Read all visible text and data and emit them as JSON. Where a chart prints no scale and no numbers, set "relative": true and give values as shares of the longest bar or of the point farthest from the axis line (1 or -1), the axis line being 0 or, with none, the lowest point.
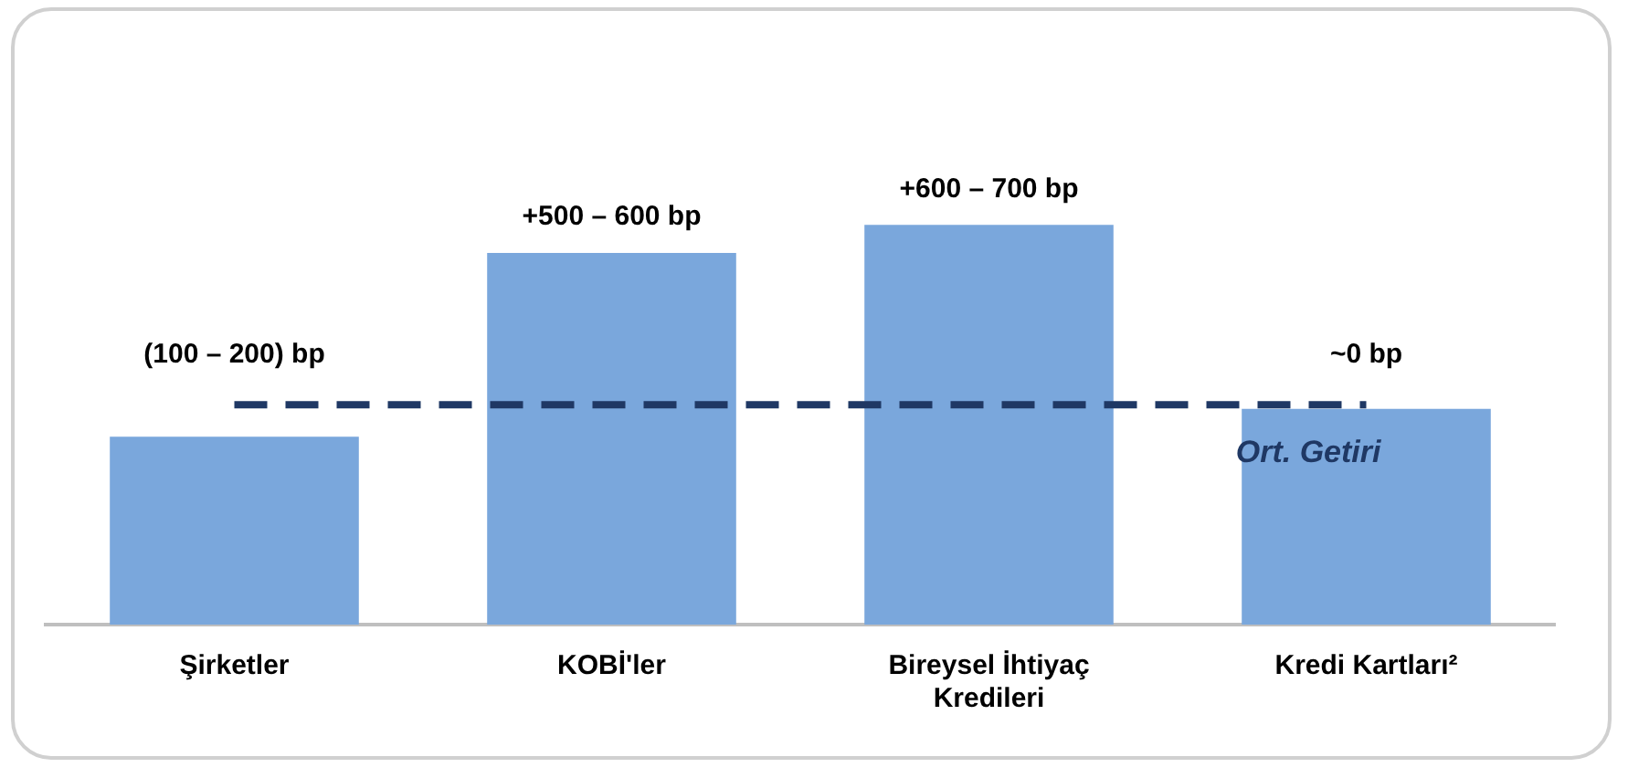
{
  "chart_data": {
    "type": "bar",
    "relative": true,
    "categories": [
      "Şirketler",
      "KOBİ'ler",
      "Bireysel İhtiyaç Kredileri",
      "Kredi Kartları²"
    ],
    "values": [
      0.47,
      0.93,
      1,
      0.54
    ],
    "color": "#7aa7dc",
    "annotations": [
      {
        "text": "(100 – 200) bp",
        "x": "Şirketler",
        "y": 0.47
      },
      {
        "text": "+500 – 600 bp",
        "x": "KOBİ'ler",
        "y": 0.93
      },
      {
        "text": "+600 – 700 bp",
        "x": "Bireysel İhtiyaç Kredileri",
        "y": 1
      },
      {
        "text": "~0 bp",
        "x": "Kredi Kartları²",
        "y": 0.54
      }
    ],
    "ref_lines": [
      {
        "axis": "y",
        "value": 0.55,
        "label": "Ort. Getiri",
        "color": "#1f3864",
        "line_style": "dashed"
      }
    ],
    "grid": false,
    "legend": false
  }
}
